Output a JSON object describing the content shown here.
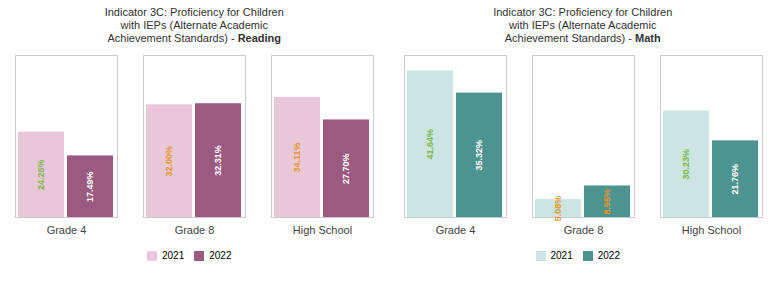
{
  "chart_data": [
    {
      "type": "bar",
      "title": "Indicator 3C: Proficiency for Children\nwith IEPs (Alternate Academic\nAchievement Standards) - Reading",
      "categories": [
        "Grade 4",
        "Grade 8",
        "High School"
      ],
      "series": [
        {
          "name": "2021",
          "color": "#e8c8d8",
          "values": [
            24.26,
            32.0,
            34.11
          ],
          "value_labels": [
            "24.26%",
            "32.00%",
            "34.11%"
          ]
        },
        {
          "name": "2022",
          "color": "#9b5b80",
          "values": [
            17.49,
            32.31,
            27.7
          ],
          "value_labels": [
            "17.49%",
            "32.31%",
            "27.70%"
          ]
        }
      ],
      "ylim": [
        0,
        46
      ],
      "grid": false,
      "legend": "bottom",
      "data_labels": true,
      "tick_labels": "x"
    },
    {
      "type": "bar",
      "title": "Indicator 3C: Proficiency for Children\nwith IEPs (Alternate Academic\nAchievement Standards) - Math",
      "categories": [
        "Grade 4",
        "Grade 8",
        "High School"
      ],
      "series": [
        {
          "name": "2021",
          "color": "#cce5e0",
          "values": [
            41.64,
            5.08,
            30.23
          ],
          "value_labels": [
            "41.64%",
            "5.08%",
            "30.23%"
          ]
        },
        {
          "name": "2022",
          "color": "#4d9490",
          "values": [
            35.32,
            8.95,
            21.76
          ],
          "value_labels": [
            "35.32%",
            "8.95%",
            "21.76%"
          ]
        }
      ],
      "ylim": [
        0,
        46
      ],
      "grid": false,
      "legend": "bottom",
      "data_labels": true,
      "tick_labels": "x"
    }
  ]
}
